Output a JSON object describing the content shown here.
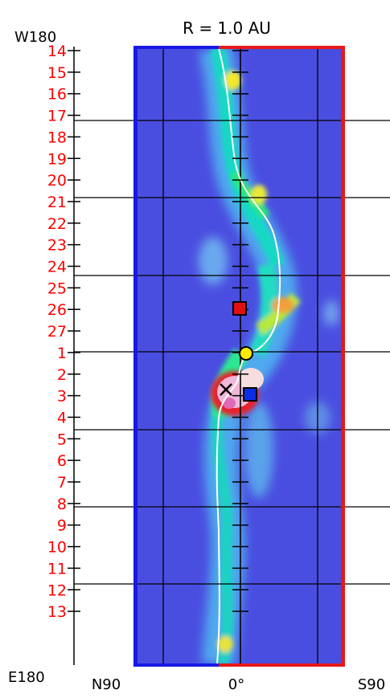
{
  "title": "R = 1.0 AU",
  "corner_labels": {
    "top_left": "W180",
    "bottom_left": "E180"
  },
  "x_axis_labels": {
    "left": "N90",
    "center": "0°",
    "right": "S90"
  },
  "y_tick_labels": [
    "14",
    "15",
    "16",
    "17",
    "18",
    "19",
    "20",
    "21",
    "22",
    "23",
    "24",
    "25",
    "26",
    "27",
    "1",
    "2",
    "3",
    "4",
    "5",
    "6",
    "7",
    "8",
    "9",
    "10",
    "11",
    "12",
    "13"
  ],
  "colors": {
    "background_field": "#4a4ee0",
    "left_border": "#1818e6",
    "right_border": "#e61818",
    "top_border": "#e61818",
    "tick_label": "#ff0000",
    "neutral_line": "#ffffff"
  },
  "markers": [
    {
      "name": "red-square-marker",
      "color": "#e01010"
    },
    {
      "name": "yellow-circle-marker",
      "color": "#ffeb00"
    },
    {
      "name": "blue-square-marker",
      "color": "#0a2ee6"
    },
    {
      "name": "x-marker",
      "color": "#000000"
    }
  ]
}
